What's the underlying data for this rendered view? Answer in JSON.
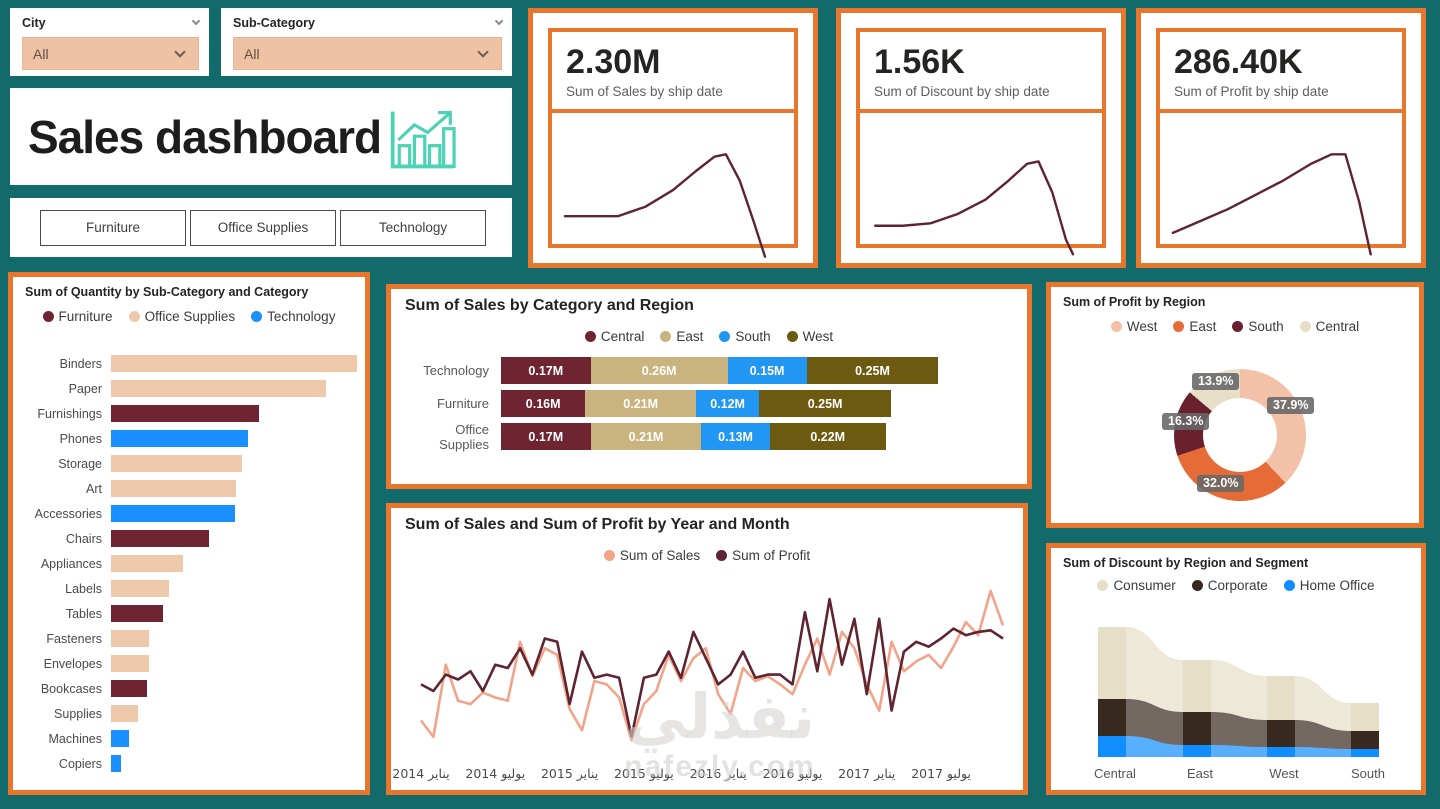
{
  "theme": {
    "background": "#136A6B",
    "accent_orange": "#E8762D",
    "icon_mint": "#4FD1B5",
    "maroon": "#5E2430",
    "kpi_value_color": "#252423"
  },
  "slicers": [
    {
      "label": "City",
      "value": "All"
    },
    {
      "label": "Sub-Category",
      "value": "All"
    }
  ],
  "title": "Sales dashboard",
  "buttons": [
    "Furniture",
    "Office Supplies",
    "Technology"
  ],
  "kpis": [
    {
      "value": "2.30M",
      "label": "Sum of Sales by ship date",
      "spark": [
        [
          3,
          40
        ],
        [
          14,
          40
        ],
        [
          26,
          40
        ],
        [
          38,
          36
        ],
        [
          50,
          29
        ],
        [
          60,
          21
        ],
        [
          68,
          15
        ],
        [
          73,
          14
        ],
        [
          79,
          25
        ],
        [
          85,
          42
        ],
        [
          90,
          57
        ]
      ]
    },
    {
      "value": "1.56K",
      "label": "Sum of Discount by ship date",
      "spark": [
        [
          4,
          44
        ],
        [
          16,
          44
        ],
        [
          28,
          43
        ],
        [
          40,
          39
        ],
        [
          52,
          33
        ],
        [
          62,
          25
        ],
        [
          70,
          18
        ],
        [
          75,
          17
        ],
        [
          81,
          30
        ],
        [
          87,
          50
        ],
        [
          90,
          56
        ]
      ]
    },
    {
      "value": "286.40K",
      "label": "Sum of Profit by ship date",
      "spark": [
        [
          3,
          47
        ],
        [
          15,
          42
        ],
        [
          27,
          37
        ],
        [
          39,
          31
        ],
        [
          51,
          25
        ],
        [
          63,
          18
        ],
        [
          72,
          14
        ],
        [
          78,
          14
        ],
        [
          84,
          34
        ],
        [
          89,
          56
        ]
      ]
    }
  ],
  "chart_data": [
    {
      "id": "quantity",
      "type": "bar",
      "orientation": "horizontal",
      "title": "Sum of Quantity by Sub-Category and Category",
      "xlabel": "Sum of Quantity",
      "ylabel": "Sub-Category",
      "legend": [
        {
          "label": "Furniture",
          "color": "#6E2431"
        },
        {
          "label": "Office Supplies",
          "color": "#EDC8AB"
        },
        {
          "label": "Technology",
          "color": "#1A8FFF"
        }
      ],
      "items": [
        {
          "label": "Binders",
          "category": "Office Supplies",
          "value": 5974
        },
        {
          "label": "Paper",
          "category": "Office Supplies",
          "value": 5178
        },
        {
          "label": "Furnishings",
          "category": "Furniture",
          "value": 3563
        },
        {
          "label": "Phones",
          "category": "Technology",
          "value": 3289
        },
        {
          "label": "Storage",
          "category": "Office Supplies",
          "value": 3158
        },
        {
          "label": "Art",
          "category": "Office Supplies",
          "value": 3000
        },
        {
          "label": "Accessories",
          "category": "Technology",
          "value": 2976
        },
        {
          "label": "Chairs",
          "category": "Furniture",
          "value": 2356
        },
        {
          "label": "Appliances",
          "category": "Office Supplies",
          "value": 1729
        },
        {
          "label": "Labels",
          "category": "Office Supplies",
          "value": 1400
        },
        {
          "label": "Tables",
          "category": "Furniture",
          "value": 1241
        },
        {
          "label": "Fasteners",
          "category": "Office Supplies",
          "value": 914
        },
        {
          "label": "Envelopes",
          "category": "Office Supplies",
          "value": 906
        },
        {
          "label": "Bookcases",
          "category": "Furniture",
          "value": 868
        },
        {
          "label": "Supplies",
          "category": "Office Supplies",
          "value": 647
        },
        {
          "label": "Machines",
          "category": "Technology",
          "value": 440
        },
        {
          "label": "Copiers",
          "category": "Technology",
          "value": 234
        }
      ],
      "max": 5974
    },
    {
      "id": "sales_by_cat_region",
      "type": "bar",
      "stacked": true,
      "title": "Sum of Sales by Category and Region",
      "categories": [
        "Technology",
        "Furniture",
        "Office Supplies"
      ],
      "series": [
        {
          "name": "Central",
          "color": "#6E2431",
          "values": [
            0.17,
            0.16,
            0.17
          ]
        },
        {
          "name": "East",
          "color": "#C9B37E",
          "values": [
            0.26,
            0.21,
            0.21
          ]
        },
        {
          "name": "South",
          "color": "#2196F3",
          "values": [
            0.15,
            0.12,
            0.13
          ]
        },
        {
          "name": "West",
          "color": "#6B5A0F",
          "values": [
            0.25,
            0.25,
            0.22
          ]
        }
      ],
      "unit": "M"
    },
    {
      "id": "sales_profit_by_month",
      "type": "line",
      "title": "Sum of Sales and Sum of Profit by Year and Month",
      "x_labels": [
        "يناير 2014",
        "يوليو 2014",
        "يناير 2015",
        "يوليو 2015",
        "يناير 2016",
        "يوليو 2016",
        "يناير 2017",
        "يوليو 2017"
      ],
      "x_label_indices": [
        0,
        6,
        12,
        18,
        24,
        30,
        36,
        42
      ],
      "y_relative_scale": [
        0,
        100
      ],
      "series": [
        {
          "name": "Sum of Sales",
          "color": "#F2A48A",
          "values": [
            18,
            8,
            52,
            30,
            28,
            35,
            32,
            30,
            66,
            45,
            62,
            58,
            25,
            12,
            42,
            40,
            32,
            6,
            28,
            36,
            58,
            42,
            56,
            62,
            34,
            22,
            50,
            42,
            45,
            40,
            34,
            52,
            68,
            46,
            72,
            62,
            40,
            24,
            66,
            48,
            54,
            58,
            50,
            63,
            78,
            70,
            97,
            76
          ]
        },
        {
          "name": "Sum of Profit",
          "color": "#5E2430",
          "values": [
            40,
            36,
            46,
            43,
            48,
            36,
            52,
            50,
            62,
            46,
            68,
            66,
            28,
            60,
            44,
            46,
            44,
            8,
            44,
            46,
            60,
            44,
            72,
            56,
            40,
            46,
            60,
            44,
            46,
            46,
            40,
            84,
            48,
            92,
            52,
            80,
            34,
            80,
            24,
            60,
            66,
            63,
            68,
            74,
            70,
            72,
            73,
            68
          ]
        }
      ]
    },
    {
      "id": "profit_by_region",
      "type": "pie",
      "title": "Sum of Profit by Region",
      "slices": [
        {
          "name": "West",
          "pct": 37.9,
          "label": "37.9%",
          "color": "#F2C1A7"
        },
        {
          "name": "East",
          "pct": 32.0,
          "label": "32.0%",
          "color": "#E66C37"
        },
        {
          "name": "South",
          "pct": 16.3,
          "label": "16.3%",
          "color": "#6B2030"
        },
        {
          "name": "Central",
          "pct": 13.9,
          "label": "13.9%",
          "color": "#E6DFC8"
        }
      ]
    },
    {
      "id": "discount_by_region_segment",
      "type": "area",
      "stacked": true,
      "title": "Sum of Discount by Region and Segment",
      "categories": [
        "Central",
        "East",
        "West",
        "South"
      ],
      "series": [
        {
          "name": "Consumer",
          "color": "#E6DFC8",
          "values": [
            72,
            52,
            44,
            28
          ]
        },
        {
          "name": "Corporate",
          "color": "#38291F",
          "values": [
            37,
            33,
            27,
            18
          ]
        },
        {
          "name": "Home Office",
          "color": "#118DFF",
          "values": [
            21,
            12,
            10,
            8
          ]
        }
      ]
    }
  ],
  "watermark": {
    "line1": "نفذلي",
    "line2": "nafezly.com"
  }
}
